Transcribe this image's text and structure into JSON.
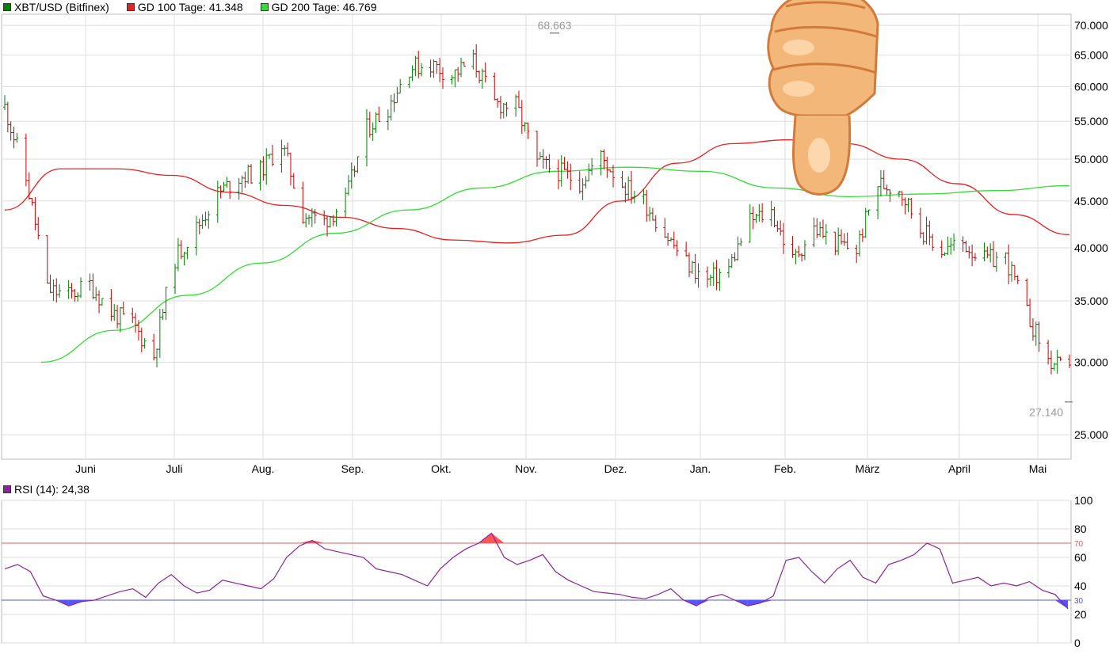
{
  "legend": {
    "symbol": "XBT/USD (Bitfinex)",
    "ma100": "GD 100 Tage: 41.348",
    "ma200": "GD 200 Tage: 46.769",
    "rsi": "RSI (14): 24,38"
  },
  "colors": {
    "up": "#008000",
    "down": "#cc0000",
    "ma100": "#e82020",
    "ma200": "#33dd33",
    "rsi": "#8a2596",
    "rsi_hi_fill": "#ff5555",
    "rsi_lo_fill": "#5555ff",
    "grid": "#dddddd",
    "rsi_hi_line": "#e06060",
    "rsi_lo_line": "#5555cc"
  },
  "chart_data": [
    {
      "type": "ohlc",
      "title": "XBT/USD (Bitfinex)",
      "xlabel": "",
      "ylabel": "",
      "x_tick_labels": [
        "Juni",
        "Juli",
        "Aug.",
        "Sep.",
        "Okt.",
        "Nov.",
        "Dez.",
        "Jan.",
        "Feb.",
        "März",
        "April",
        "Mai"
      ],
      "y_tick_labels": [
        "70.000",
        "65.000",
        "60.000",
        "55.000",
        "50.000",
        "45.000",
        "40.000",
        "35.000",
        "30.000",
        "25.000"
      ],
      "y_ticks": [
        70000,
        65000,
        60000,
        55000,
        50000,
        45000,
        40000,
        35000,
        30000,
        25000
      ],
      "y_scale": "log",
      "ylim": [
        23500,
        72000
      ],
      "grid": true,
      "annotations": [
        {
          "text": "68.663",
          "value": 68663,
          "date": "Nov."
        },
        {
          "text": "27.140",
          "value": 27140,
          "date": "Mai"
        }
      ],
      "series": [
        {
          "name": "XBT/USD",
          "values_weekly_close": [
            57000,
            47500,
            36000,
            35500,
            36500,
            34000,
            33000,
            30500,
            39000,
            42000,
            45800,
            47800,
            48500,
            52000,
            43500,
            42800,
            45000,
            54000,
            57000,
            63000,
            63500,
            61800,
            64000,
            57500,
            57200,
            49500,
            48500,
            47200,
            50300,
            47000,
            45000,
            41500,
            38500,
            36800,
            38000,
            42800,
            43800,
            38700,
            42000,
            40500,
            39800,
            47000,
            46500,
            42000,
            39700,
            40500,
            38800,
            39000,
            33900,
            30100,
            29200
          ]
        },
        {
          "name": "GD 100 Tage",
          "values": [
            44000,
            48800,
            48800,
            48000,
            46000,
            44500,
            43200,
            42000,
            40800,
            40500,
            41300,
            45000,
            49500,
            52000,
            52500,
            52000,
            50000,
            47000,
            43500,
            41348
          ]
        },
        {
          "name": "GD 200 Tage",
          "values": [
            30000,
            32500,
            35500,
            38500,
            41500,
            44000,
            46500,
            48500,
            49000,
            48500,
            46500,
            45500,
            45800,
            46200,
            46769
          ]
        }
      ]
    },
    {
      "type": "line",
      "title": "RSI (14): 24,38",
      "ylim": [
        0,
        100
      ],
      "y_tick_labels": [
        "100",
        "80",
        "60",
        "40",
        "20",
        "0"
      ],
      "y_ticks": [
        100,
        80,
        60,
        40,
        20,
        0
      ],
      "reference_lines": [
        {
          "text": "70",
          "value": 70
        },
        {
          "text": "30",
          "value": 30
        }
      ],
      "series": [
        {
          "name": "RSI (14)",
          "values": [
            52,
            55,
            50,
            33,
            30,
            26,
            29,
            30,
            33,
            36,
            38,
            32,
            42,
            48,
            40,
            35,
            37,
            44,
            42,
            40,
            38,
            45,
            60,
            68,
            72,
            66,
            64,
            62,
            60,
            52,
            50,
            48,
            44,
            40,
            52,
            60,
            66,
            70,
            77,
            60,
            55,
            58,
            62,
            50,
            44,
            40,
            36,
            35,
            34,
            32,
            31,
            34,
            38,
            30,
            26,
            32,
            34,
            30,
            26,
            28,
            33,
            58,
            60,
            50,
            42,
            52,
            58,
            46,
            42,
            55,
            58,
            62,
            70,
            66,
            42,
            44,
            46,
            40,
            42,
            40,
            43,
            37,
            34,
            24
          ]
        }
      ]
    }
  ]
}
